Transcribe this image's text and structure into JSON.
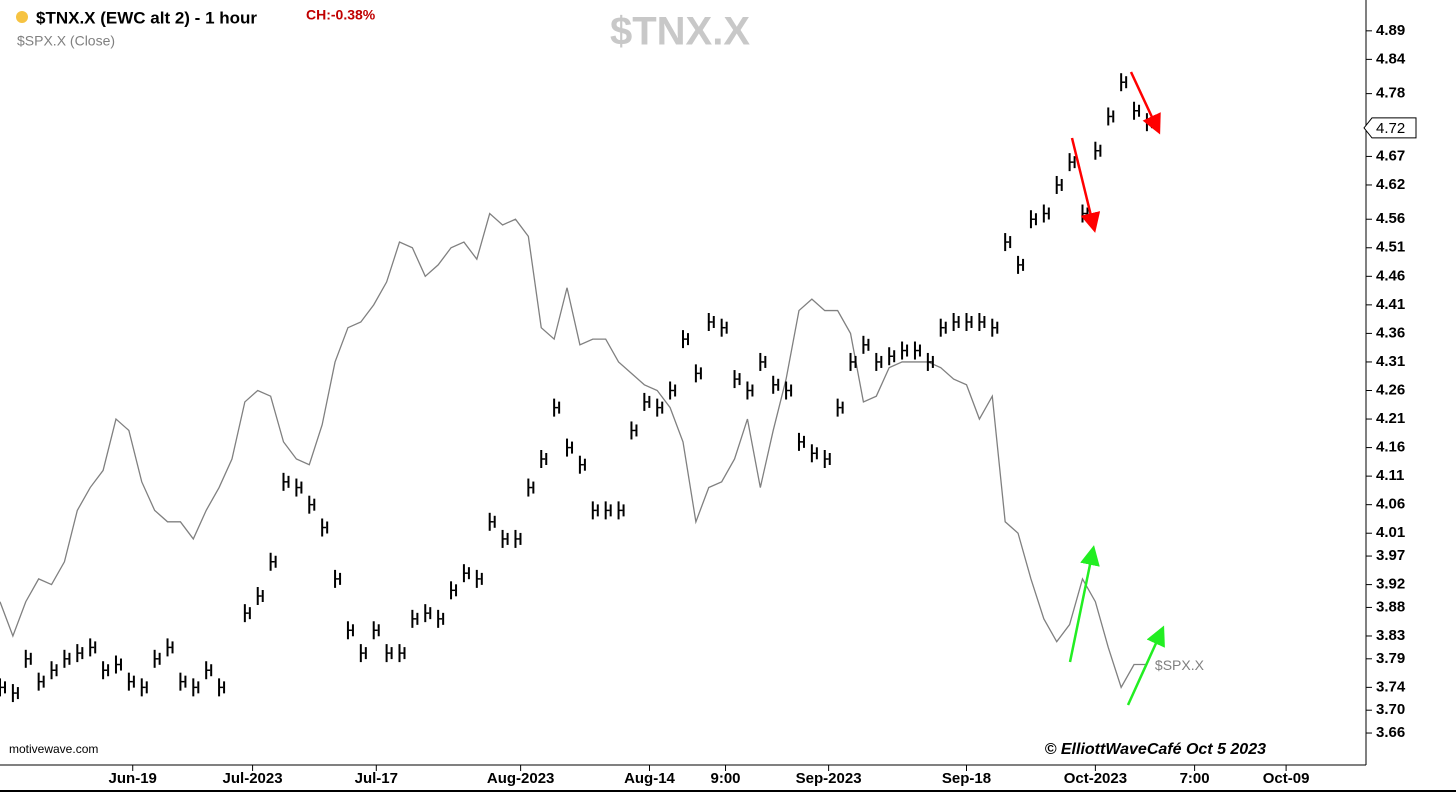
{
  "chart_data": {
    "type": "ohlc",
    "title": "$TNX.X (EWC alt 2) - 1 hour",
    "change_label": "CH:-0.38%",
    "overlay_label": "$SPX.X (Close)",
    "watermark": "$TNX.X",
    "source": "motivewave.com",
    "credit": "© ElliottWaveCafé Oct 5 2023",
    "last_price": {
      "value": 4.72,
      "label": "4.72"
    },
    "xlim": [
      0,
      106
    ],
    "xticks": [
      {
        "value": 10.3,
        "label": "Jun-19"
      },
      {
        "value": 19.6,
        "label": "Jul-2023"
      },
      {
        "value": 29.2,
        "label": "Jul-17"
      },
      {
        "value": 40.4,
        "label": "Aug-2023"
      },
      {
        "value": 50.4,
        "label": "Aug-14"
      },
      {
        "value": 56.3,
        "label": "9:00"
      },
      {
        "value": 64.3,
        "label": "Sep-2023"
      },
      {
        "value": 75,
        "label": "Sep-18"
      },
      {
        "value": 85,
        "label": "Oct-2023"
      },
      {
        "value": 92.7,
        "label": "7:00"
      },
      {
        "value": 99.8,
        "label": "Oct-09"
      }
    ],
    "ylim": [
      3.604,
      4.944
    ],
    "yticks": [
      4.89,
      4.84,
      4.78,
      4.72,
      4.67,
      4.62,
      4.56,
      4.51,
      4.46,
      4.41,
      4.36,
      4.31,
      4.26,
      4.21,
      4.16,
      4.11,
      4.06,
      4.01,
      3.97,
      3.92,
      3.88,
      3.83,
      3.79,
      3.74,
      {
        "value": 3.7,
        "label": "3.70"
      },
      3.66
    ],
    "x": [
      0,
      1,
      2,
      3,
      4,
      5,
      6,
      7,
      8,
      9,
      10,
      11,
      12,
      13,
      14,
      15,
      16,
      17,
      18,
      19,
      20,
      21,
      22,
      23,
      24,
      25,
      26,
      27,
      28,
      29,
      30,
      31,
      32,
      33,
      34,
      35,
      36,
      37,
      38,
      39,
      40,
      41,
      42,
      43,
      44,
      45,
      46,
      47,
      48,
      49,
      50,
      51,
      52,
      53,
      54,
      55,
      56,
      57,
      58,
      59,
      60,
      61,
      62,
      63,
      64,
      65,
      66,
      67,
      68,
      69,
      70,
      71,
      72,
      73,
      74,
      75,
      76,
      77,
      78,
      79,
      80,
      81,
      82,
      83,
      84,
      85,
      86,
      87,
      88,
      89
    ],
    "series": [
      {
        "name": "$TNX.X",
        "color": "#000000",
        "values": [
          3.74,
          3.73,
          3.79,
          3.75,
          3.77,
          3.79,
          3.8,
          3.81,
          3.77,
          3.78,
          3.75,
          3.74,
          3.79,
          3.81,
          3.75,
          3.74,
          3.77,
          3.74,
          null,
          3.87,
          3.9,
          3.96,
          4.1,
          4.09,
          4.06,
          4.02,
          3.93,
          3.84,
          3.8,
          3.84,
          3.8,
          3.8,
          3.86,
          3.87,
          3.86,
          3.91,
          3.94,
          3.93,
          4.03,
          4.0,
          4.0,
          4.09,
          4.14,
          4.23,
          4.16,
          4.13,
          4.05,
          4.05,
          4.05,
          4.19,
          4.24,
          4.23,
          4.26,
          4.35,
          4.29,
          4.38,
          4.37,
          4.28,
          4.26,
          4.31,
          4.27,
          4.26,
          4.17,
          4.15,
          4.14,
          4.23,
          4.31,
          4.34,
          4.31,
          4.32,
          4.33,
          4.33,
          4.31,
          4.37,
          4.38,
          4.38,
          4.38,
          4.37,
          4.52,
          4.48,
          4.56,
          4.57,
          4.62,
          4.66,
          4.57,
          4.68,
          4.74,
          4.8,
          4.75,
          4.73
        ]
      },
      {
        "name": "$SPX.X",
        "color": "#808080",
        "values": [
          3.89,
          3.83,
          3.89,
          3.93,
          3.92,
          3.96,
          4.05,
          4.09,
          4.12,
          4.21,
          4.19,
          4.1,
          4.05,
          4.03,
          4.03,
          4.0,
          4.05,
          4.09,
          4.14,
          4.24,
          4.26,
          4.25,
          4.17,
          4.14,
          4.13,
          4.2,
          4.31,
          4.37,
          4.38,
          4.41,
          4.45,
          4.52,
          4.51,
          4.46,
          4.48,
          4.51,
          4.52,
          4.49,
          4.57,
          4.55,
          4.56,
          4.53,
          4.37,
          4.35,
          4.44,
          4.34,
          4.35,
          4.35,
          4.31,
          4.29,
          4.27,
          4.26,
          4.23,
          4.17,
          4.03,
          4.09,
          4.1,
          4.14,
          4.21,
          4.09,
          4.19,
          4.28,
          4.4,
          4.42,
          4.4,
          4.4,
          4.36,
          4.24,
          4.25,
          4.3,
          4.31,
          4.31,
          4.31,
          4.3,
          4.28,
          4.27,
          4.21,
          4.25,
          4.03,
          4.01,
          3.93,
          3.86,
          3.82,
          3.85,
          3.93,
          3.89,
          3.81,
          3.74,
          3.78,
          3.78
        ]
      }
    ]
  }
}
